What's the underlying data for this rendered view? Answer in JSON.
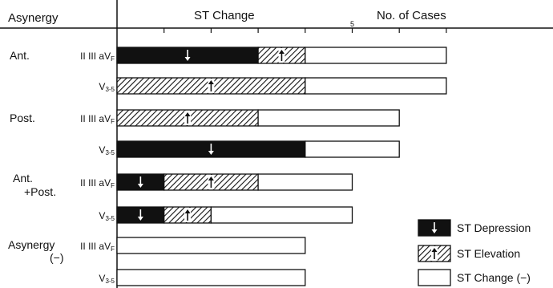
{
  "chart_data": {
    "type": "bar",
    "stacked": true,
    "orientation": "horizontal",
    "header": {
      "left": "Asynergy",
      "center": "ST Change",
      "right": "No. of Cases"
    },
    "x_axis": {
      "range": [
        0,
        7
      ],
      "ticks": [
        5
      ],
      "tick_labels": [
        "5"
      ],
      "unit_ticks": [
        1,
        2,
        3,
        4,
        5,
        6,
        7
      ]
    },
    "groups": [
      {
        "label": "Ant.",
        "rows": [
          0,
          1
        ]
      },
      {
        "label": "Post.",
        "rows": [
          2,
          3
        ]
      },
      {
        "label_lines": [
          "Ant.",
          "+Post."
        ],
        "rows": [
          4,
          5
        ]
      },
      {
        "label_lines": [
          "Asynergy",
          "(−)"
        ],
        "rows": [
          6,
          7
        ]
      }
    ],
    "rows": [
      {
        "lead": "II III aV",
        "lead_sub": "F",
        "depression": 3,
        "elevation": 1,
        "none": 3
      },
      {
        "lead": "V",
        "lead_sub": "3-5",
        "depression": 0,
        "elevation": 4,
        "none": 3
      },
      {
        "lead": "II III aV",
        "lead_sub": "F",
        "depression": 0,
        "elevation": 3,
        "none": 3
      },
      {
        "lead": "V",
        "lead_sub": "3-5",
        "depression": 4,
        "elevation": 0,
        "none": 2
      },
      {
        "lead": "II III aV",
        "lead_sub": "F",
        "depression": 1,
        "elevation": 2,
        "none": 2
      },
      {
        "lead": "V",
        "lead_sub": "3-5",
        "depression": 1,
        "elevation": 1,
        "none": 3
      },
      {
        "lead": "II III aV",
        "lead_sub": "F",
        "depression": 0,
        "elevation": 0,
        "none": 4
      },
      {
        "lead": "V",
        "lead_sub": "3-5",
        "depression": 0,
        "elevation": 0,
        "none": 4
      }
    ],
    "legend": [
      {
        "key": "depression",
        "label": "ST Depression",
        "color": "#111111"
      },
      {
        "key": "elevation",
        "label": "ST Elevation",
        "color": "#888888"
      },
      {
        "key": "none",
        "label": "ST Change (−)",
        "color": "#ffffff"
      }
    ],
    "legend_position": "bottom-right"
  }
}
